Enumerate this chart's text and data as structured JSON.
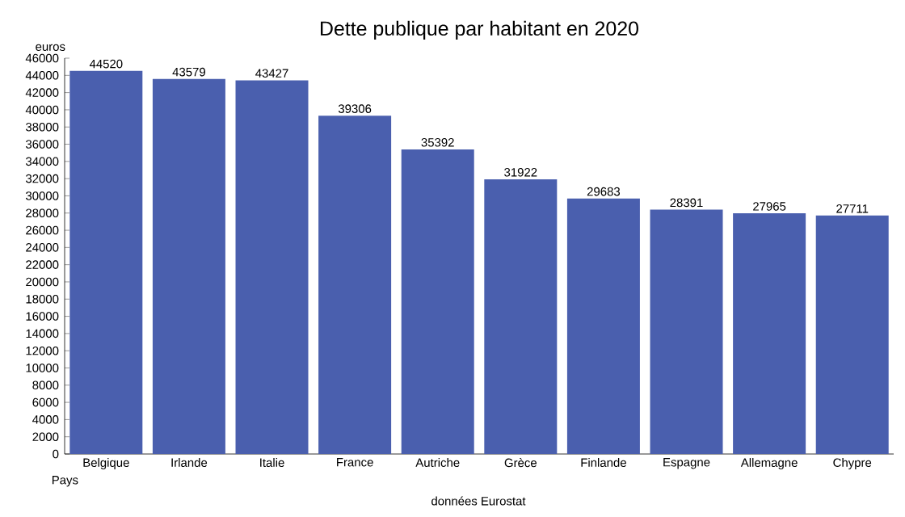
{
  "chart_data": {
    "type": "bar",
    "title": "Dette publique par habitant en 2020",
    "xlabel": "Pays",
    "ylabel": "euros",
    "categories": [
      "Belgique",
      "Irlande",
      "Italie",
      "France",
      "Autriche",
      "Grèce",
      "Finlande",
      "Espagne",
      "Allemagne",
      "Chypre"
    ],
    "values": [
      44520,
      43579,
      43427,
      39306,
      35392,
      31922,
      29683,
      28391,
      27965,
      27711
    ],
    "color": "#4a5fae",
    "data_labels": true,
    "ylim": [
      0,
      46000
    ],
    "yticks": [
      0,
      2000,
      4000,
      6000,
      8000,
      10000,
      12000,
      14000,
      16000,
      18000,
      20000,
      22000,
      24000,
      26000,
      28000,
      30000,
      32000,
      34000,
      36000,
      38000,
      40000,
      42000,
      44000,
      46000
    ],
    "annotations": [
      "données Eurostat"
    ]
  }
}
